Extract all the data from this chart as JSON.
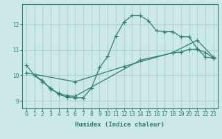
{
  "xlabel": "Humidex (Indice chaleur)",
  "bg_color": "#cce8e8",
  "line_color": "#2e7d6e",
  "grid_color": "#b0d4d4",
  "xlim": [
    -0.5,
    23.5
  ],
  "ylim": [
    8.7,
    12.8
  ],
  "xticks": [
    0,
    1,
    2,
    3,
    4,
    5,
    6,
    7,
    8,
    9,
    10,
    11,
    12,
    13,
    14,
    15,
    16,
    17,
    18,
    19,
    20,
    21,
    22,
    23
  ],
  "yticks": [
    9,
    10,
    11,
    12
  ],
  "curve1_x": [
    1,
    2,
    3,
    4,
    5,
    6,
    7,
    8,
    9,
    10,
    11,
    12,
    13,
    14,
    15,
    16,
    17,
    18,
    19,
    20,
    21,
    22,
    23
  ],
  "curve1_y": [
    10.0,
    9.75,
    9.5,
    9.25,
    9.15,
    9.12,
    9.12,
    9.5,
    10.3,
    10.75,
    11.55,
    12.1,
    12.35,
    12.35,
    12.15,
    11.75,
    11.72,
    11.72,
    11.52,
    11.52,
    11.05,
    10.72,
    10.68
  ],
  "curve2_x": [
    0,
    1,
    2,
    3,
    4,
    5,
    6,
    14,
    18,
    19,
    20,
    21,
    22,
    23
  ],
  "curve2_y": [
    10.4,
    10.0,
    9.8,
    9.45,
    9.3,
    9.2,
    9.18,
    10.6,
    10.88,
    10.92,
    11.02,
    11.02,
    10.9,
    10.68
  ],
  "curve3_x": [
    0,
    6,
    12,
    18,
    21,
    23
  ],
  "curve3_y": [
    10.1,
    9.75,
    10.35,
    10.9,
    11.38,
    10.72
  ]
}
